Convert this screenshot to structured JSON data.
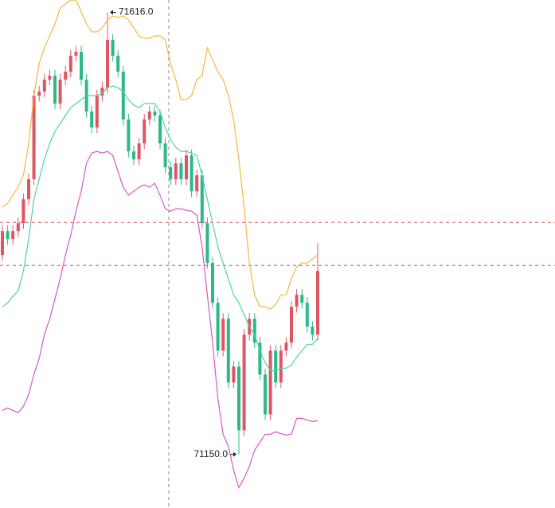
{
  "chart_data": {
    "type": "candlestick",
    "up_color": "#e05563",
    "down_color": "#2db88a",
    "ylim": [
      71093.5,
      71629
    ],
    "open": [
      71360.2,
      71385.4,
      71377,
      71385.4,
      71393.8,
      71419,
      71440,
      71528.2,
      71532.4,
      71545,
      71549.2,
      71519.8,
      71545,
      71553.4,
      71570.2,
      71574.4,
      71545,
      71511.4,
      71494.6,
      71528.2,
      71536.6,
      71587,
      71570.2,
      71553.4,
      71503,
      71469.4,
      71461,
      71477.8,
      71503,
      71511.4,
      71507.2,
      71477.8,
      71452.6,
      71440,
      71456.8,
      71440,
      71465.2,
      71427.4,
      71444.2,
      71393.8,
      71351.8,
      71309.8,
      71259.4,
      71293,
      71225.8,
      71242.6,
      71175.4,
      71276.2,
      71293,
      71267.8,
      71234.2,
      71192.2,
      71259.4,
      71225.8,
      71259.4,
      71267.8,
      71305.6,
      71318.2,
      71309.8,
      71284.6,
      71276.2
    ],
    "high": [
      71391.4,
      71391.4,
      71391.4,
      71399.8,
      71425,
      71446,
      71534.2,
      71538.4,
      71551,
      71555.2,
      71555.2,
      71551,
      71559.4,
      71576.2,
      71580.4,
      71580.4,
      71551,
      71517.4,
      71534.2,
      71542.6,
      71616,
      71593,
      71576.2,
      71559.4,
      71509,
      71475.4,
      71483.8,
      71509,
      71517.4,
      71517.4,
      71513.2,
      71483.8,
      71458.6,
      71462.8,
      71462.8,
      71471.2,
      71471.2,
      71450.2,
      71450.2,
      71399.8,
      71357.8,
      71315.8,
      71299,
      71299,
      71248.6,
      71248.6,
      71282.2,
      71299,
      71299,
      71273.8,
      71240.2,
      71265.4,
      71265.4,
      71265.4,
      71273.8,
      71311.6,
      71324.2,
      71324.2,
      71315.8,
      71290.6,
      71372.8
    ],
    "low": [
      71354.2,
      71371,
      71371,
      71379.4,
      71387.8,
      71413,
      71434,
      71522.2,
      71526.4,
      71539,
      71513.8,
      71513.8,
      71539,
      71547.4,
      71564.2,
      71539,
      71505.4,
      71488.6,
      71488.6,
      71522.2,
      71530.6,
      71564.2,
      71547.4,
      71497,
      71463.4,
      71455,
      71455,
      71471.8,
      71497,
      71501.2,
      71471.8,
      71446.6,
      71434,
      71434,
      71434,
      71434,
      71421.4,
      71421.4,
      71387.8,
      71345.8,
      71303.8,
      71253.4,
      71253.4,
      71219.8,
      71219.8,
      71150,
      71169.4,
      71270.2,
      71261.8,
      71228.2,
      71186.2,
      71186.2,
      71219.8,
      71219.8,
      71253.4,
      71261.8,
      71299.6,
      71303.8,
      71278.6,
      71270.2,
      71270.2
    ],
    "close": [
      71385.4,
      71377,
      71385.4,
      71393.8,
      71419,
      71440,
      71528.2,
      71532.4,
      71545,
      71549.2,
      71519.8,
      71545,
      71553.4,
      71570.2,
      71574.4,
      71545,
      71511.4,
      71494.6,
      71528.2,
      71536.6,
      71587,
      71570.2,
      71553.4,
      71503,
      71469.4,
      71461,
      71477.8,
      71503,
      71511.4,
      71507.2,
      71477.8,
      71452.6,
      71440,
      71456.8,
      71440,
      71465.2,
      71427.4,
      71444.2,
      71393.8,
      71351.8,
      71309.8,
      71259.4,
      71293,
      71225.8,
      71242.6,
      71175.4,
      71276.2,
      71293,
      71267.8,
      71234.2,
      71192.2,
      71259.4,
      71225.8,
      71259.4,
      71267.8,
      71305.6,
      71318.2,
      71309.8,
      71284.6,
      71276.2,
      71343.4
    ],
    "bands": [
      {
        "color": "#f5b83d",
        "values": [
          71410.6,
          71414.8,
          71423.2,
          71431.6,
          71444.2,
          71477.8,
          71528.2,
          71561.8,
          71578.6,
          71591.2,
          71603.8,
          71620.6,
          71624.8,
          71629,
          71629,
          71616.4,
          71603.8,
          71595.4,
          71595.4,
          71599.6,
          71608,
          71612.2,
          71610.5,
          71612.2,
          71608,
          71599.6,
          71591.2,
          71588.7,
          71588.7,
          71591.2,
          71591.2,
          71587,
          71561.8,
          71545,
          71524,
          71524,
          71528.2,
          71545,
          71549.2,
          71578.6,
          71566,
          71553.4,
          71545,
          71528.2,
          71503,
          71461,
          71410.6,
          71351.8,
          71318.2,
          71305.6,
          71305.6,
          71303.1,
          71308.1,
          71318.2,
          71318.2,
          71335,
          71347.6,
          71351.8,
          71351.8,
          71356,
          71360.2
        ]
      },
      {
        "color": "#4fd1b0",
        "values": [
          71305.6,
          71309.8,
          71316.5,
          71322.4,
          71343.4,
          71377,
          71419,
          71440,
          71461,
          71477.8,
          71490.4,
          71498.8,
          71507.2,
          71515.6,
          71519.8,
          71524,
          71528.2,
          71528.2,
          71528.2,
          71530.7,
          71536.6,
          71538.3,
          71536.6,
          71532.4,
          71524,
          71518.1,
          71515.6,
          71519.8,
          71519.8,
          71519.8,
          71511.4,
          71494.6,
          71482,
          71473.6,
          71469.4,
          71469.4,
          71467.7,
          71465.2,
          71444.2,
          71419,
          71393.8,
          71368.6,
          71351.8,
          71335,
          71318.2,
          71309.8,
          71297.2,
          71284.6,
          71276.2,
          71259.4,
          71246.8,
          71238.4,
          71238.4,
          71240.9,
          71240.9,
          71244.3,
          71252.7,
          71259.4,
          71266.1,
          71266.1,
          71272
        ]
      },
      {
        "color": "#d957c8",
        "values": [
          71196.4,
          71198.9,
          71196.4,
          71193.9,
          71200.6,
          71213.2,
          71234.2,
          71251,
          71276.2,
          71293,
          71314,
          71335,
          71360.2,
          71381.2,
          71406.4,
          71427.4,
          71456.8,
          71467.7,
          71469.4,
          71467.7,
          71469.4,
          71465.2,
          71448.4,
          71431.6,
          71423.2,
          71427.4,
          71431.6,
          71434.1,
          71431.6,
          71435.8,
          71423.2,
          71408.9,
          71406.4,
          71408.9,
          71408.9,
          71407.2,
          71406.4,
          71402.2,
          71368.6,
          71318.2,
          71267.8,
          71209,
          71171.2,
          71158.6,
          71133.4,
          71114.9,
          71125,
          71137.6,
          71154.4,
          71162.8,
          71171.2,
          71171.2,
          71173.7,
          71172,
          71170.4,
          71171.2,
          71188,
          71188,
          71186.3,
          71184.6,
          71185.5
        ]
      }
    ],
    "price_lines": [
      71394.6,
      71349.3
    ],
    "price_line_color": "#e06060",
    "high_label": "71616.0",
    "low_label": "71150.0"
  }
}
